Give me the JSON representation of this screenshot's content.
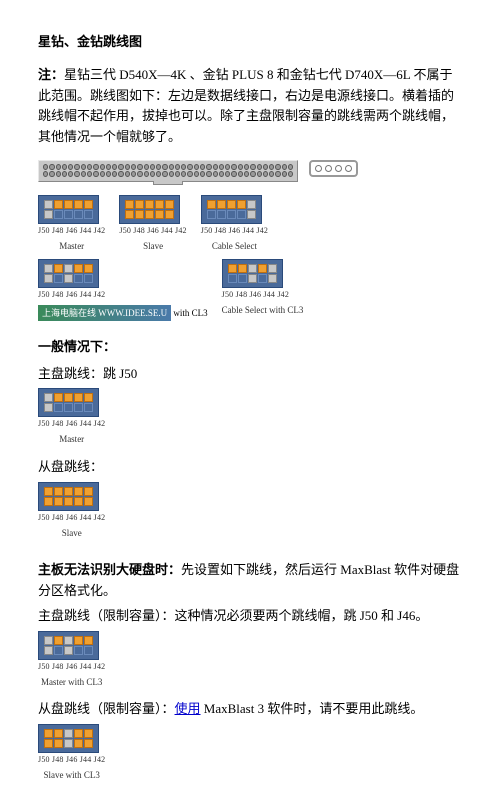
{
  "title": "星钻、金钻跳线图",
  "note_prefix": "注：",
  "note_body": "星钻三代 D540X—4K 、金钻 PLUS 8 和金钻七代 D740X—6L 不属于此范围。跳线图如下：左边是数据线接口，右边是电源线接口。横着插的跳线帽不起作用，拔掉也可以。除了主盘限制容量的跳线需两个跳线帽，其他情况一个帽就够了。",
  "jumper_pin_labels": "J50 J48 J46 J44 J42",
  "modes": {
    "master": "Master",
    "slave": "Slave",
    "cable_select": "Cable Select",
    "master_cl3": "Master with CL3",
    "cable_select_cl3": "Cable Select with CL3",
    "slave_cl3": "Slave with CL3"
  },
  "banner_text": "上海电脑在线 WWW.IDEE.SE.U",
  "banner_suffix": " with CL3",
  "section_normal": "一般情况下：",
  "master_jumper_text": "主盘跳线：跳 J50",
  "slave_jumper_text": "从盘跳线：",
  "section_bigdisk_label": "主板无法识别大硬盘时：",
  "section_bigdisk_body": "先设置如下跳线，然后运行 MaxBlast 软件对硬盘分区格式化。",
  "master_limit_text": "主盘跳线（限制容量）：这种情况必须要两个跳线帽，跳 J50 和 J46。",
  "slave_limit_prefix": "从盘跳线（限制容量）：",
  "link_text": "使用",
  "slave_limit_suffix": " MaxBlast 3 软件时，请不要用此跳线。",
  "colors": {
    "jumper_bg": "#4a6a9a",
    "pin_on": "#f0a030",
    "connector_bg": "#c8c8c8"
  }
}
